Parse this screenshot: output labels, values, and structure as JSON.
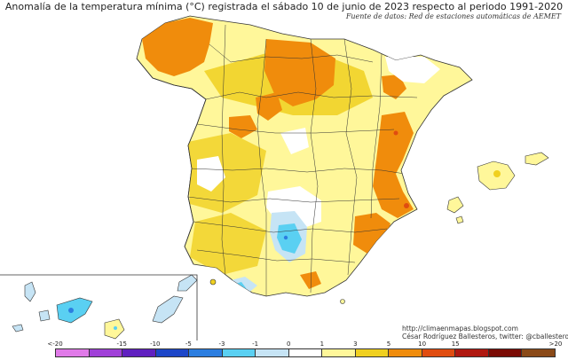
{
  "title": "Anomalía de la temperatura mínima (°C) registrada el sábado 10 de junio de 2023 respecto al periodo 1991-2020",
  "source": "Fuente de datos: Red de estaciones automáticas de AEMET",
  "credit": {
    "url": "http://climaenmapas.blogspot.com",
    "author": "César Rodríguez Ballesteros, twitter: @cballesteros"
  },
  "legend": {
    "ticks": [
      "<-20",
      "-15",
      "-10",
      "-5",
      "-3",
      "-1",
      "0",
      "1",
      "3",
      "5",
      "10",
      "15",
      ">20"
    ],
    "colors": [
      "#e07ae8",
      "#a040d8",
      "#6020c0",
      "#1c46c8",
      "#2c7ee0",
      "#5ad0f2",
      "#c6e4f5",
      "#ffffff",
      "#fff79a",
      "#f0d020",
      "#f08c0c",
      "#e04c10",
      "#b01810",
      "#7a0a04",
      "#8a4a18"
    ]
  },
  "map_colors": {
    "pale_yellow": "#fff79a",
    "yellow": "#f0d020",
    "orange": "#f08c0c",
    "white": "#ffffff",
    "light_blue": "#c6e4f5",
    "cyan": "#5ad0f2",
    "blue": "#2c7ee0",
    "red": "#e04c10",
    "border": "#333333"
  }
}
